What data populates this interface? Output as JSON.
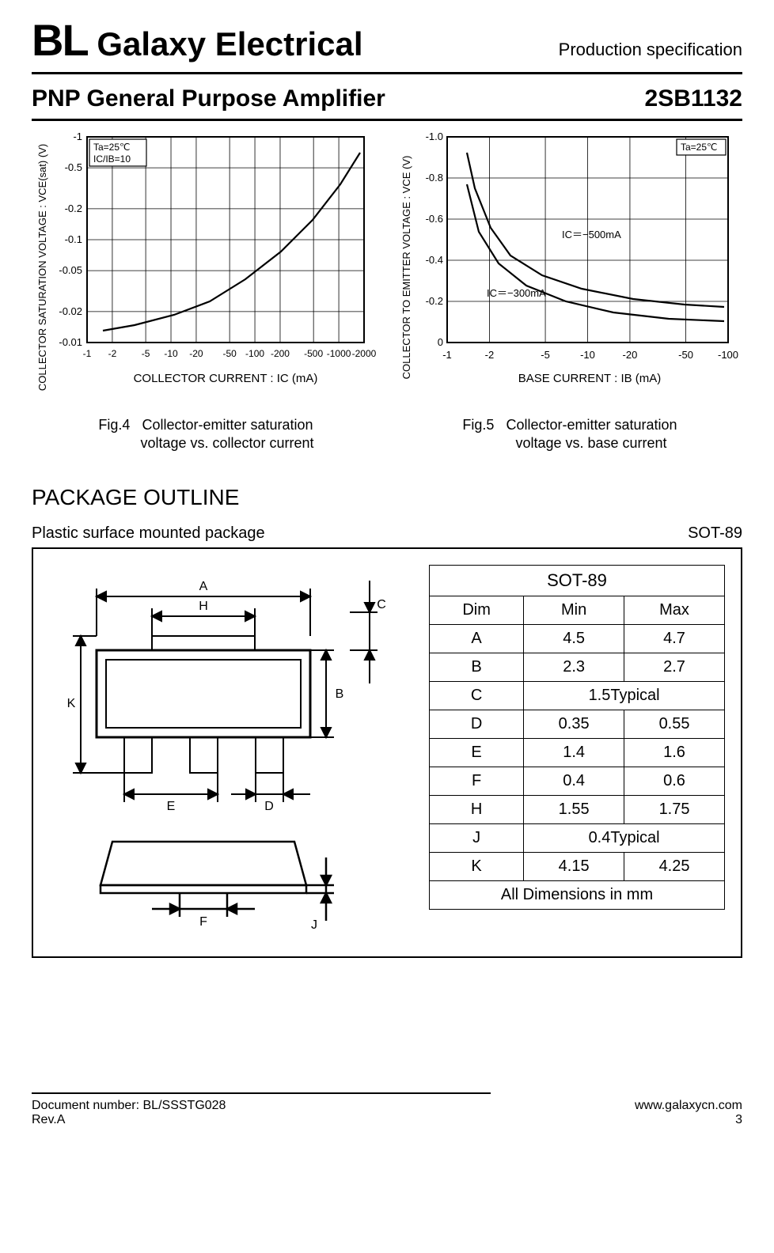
{
  "header": {
    "brand_prefix": "BL",
    "brand_name": " Galaxy Electrical",
    "spec_label": "Production specification"
  },
  "title": {
    "name": "PNP General Purpose Amplifier",
    "part_number": "2SB1132"
  },
  "fig4": {
    "y_axis_label": "COLLECTOR SATURATION VOLTAGE : VCE(sat) (V)",
    "x_axis_label": "COLLECTOR CURRENT :  IC  (mA)",
    "caption_fig": "Fig.4",
    "caption_line1": "Collector-emitter saturation",
    "caption_line2": "voltage vs. collector current",
    "corner_note1": "Ta=25℃",
    "corner_note2": "IC/IB=10",
    "y_ticks": [
      "-1",
      "-0.5",
      "-0.2",
      "-0.1",
      "-0.05",
      "-0.02",
      "-0.01"
    ],
    "x_ticks": [
      "-1",
      "-2",
      "-5",
      "-10",
      "-20",
      "-50",
      "-100",
      "-200",
      "-500",
      "-1000",
      "-2000"
    ],
    "curve_points": [
      [
        20,
        245
      ],
      [
        60,
        238
      ],
      [
        110,
        225
      ],
      [
        155,
        208
      ],
      [
        200,
        180
      ],
      [
        245,
        145
      ],
      [
        285,
        105
      ],
      [
        320,
        60
      ],
      [
        345,
        20
      ]
    ]
  },
  "fig5": {
    "y_axis_label": "COLLECTOR TO EMITTER VOLTAGE : VCE (V)",
    "x_axis_label": "BASE CURRENT : IB  (mA)",
    "caption_fig": "Fig.5",
    "caption_line1": "Collector-emitter saturation",
    "caption_line2": "voltage vs. base current",
    "corner_note": "Ta=25℃",
    "annot1": "IC＝−500mA",
    "annot2": "IC＝−300mA",
    "y_ticks": [
      "-1.0",
      "-0.8",
      "-0.6",
      "-0.4",
      "-0.2",
      "0"
    ],
    "x_ticks": [
      "-1",
      "-2",
      "-5",
      "-10",
      "-20",
      "-50",
      "-100"
    ],
    "curve1_points": [
      [
        25,
        20
      ],
      [
        35,
        65
      ],
      [
        55,
        115
      ],
      [
        80,
        150
      ],
      [
        120,
        175
      ],
      [
        170,
        192
      ],
      [
        235,
        205
      ],
      [
        300,
        212
      ],
      [
        350,
        215
      ]
    ],
    "curve2_points": [
      [
        25,
        60
      ],
      [
        40,
        120
      ],
      [
        65,
        160
      ],
      [
        100,
        188
      ],
      [
        150,
        208
      ],
      [
        210,
        222
      ],
      [
        280,
        230
      ],
      [
        350,
        233
      ]
    ]
  },
  "package": {
    "heading": "PACKAGE OUTLINE",
    "desc": "Plastic surface mounted package",
    "type": "SOT-89",
    "table_title": "SOT-89",
    "table_header": [
      "Dim",
      "Min",
      "Max"
    ],
    "rows": [
      {
        "dim": "A",
        "min": "4.5",
        "max": "4.7"
      },
      {
        "dim": "B",
        "min": "2.3",
        "max": "2.7"
      },
      {
        "dim": "C",
        "typ": "1.5Typical"
      },
      {
        "dim": "D",
        "min": "0.35",
        "max": "0.55"
      },
      {
        "dim": "E",
        "min": "1.4",
        "max": "1.6"
      },
      {
        "dim": "F",
        "min": "0.4",
        "max": "0.6"
      },
      {
        "dim": "H",
        "min": "1.55",
        "max": "1.75"
      },
      {
        "dim": "J",
        "typ": "0.4Typical"
      },
      {
        "dim": "K",
        "min": "4.15",
        "max": "4.25"
      }
    ],
    "table_footer": "All Dimensions in mm",
    "drawing_labels": [
      "A",
      "B",
      "C",
      "D",
      "E",
      "F",
      "H",
      "J",
      "K"
    ]
  },
  "footer": {
    "doc_num": "Document number: BL/SSSTG028",
    "rev": "Rev.A",
    "url": "www.galaxycn.com",
    "page": "3"
  }
}
